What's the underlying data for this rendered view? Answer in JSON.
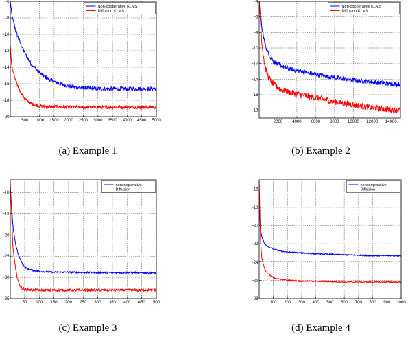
{
  "figure": {
    "captions": [
      "(a) Example 1",
      "(b) Example 2",
      "(c) Example 3",
      "(d) Example 4"
    ]
  },
  "chart_data": [
    {
      "type": "line",
      "xlim": [
        1,
        5000
      ],
      "ylim": [
        -20,
        -6
      ],
      "xticks": [
        500,
        1000,
        1500,
        2000,
        2500,
        3000,
        3500,
        4000,
        4500,
        5000
      ],
      "yticks": [
        -6,
        -8,
        -10,
        -12,
        -14,
        -16,
        -18,
        -20
      ],
      "grid": true,
      "legend_position": "top-right",
      "series": [
        {
          "name": "Non-cooperative KLMS",
          "color": "#0000ff",
          "x": [
            1,
            50,
            100,
            200,
            300,
            400,
            500,
            700,
            1000,
            1300,
            1600,
            2000,
            2500,
            3000,
            3500,
            4000,
            4500,
            5000
          ],
          "y": [
            -6,
            -7.6,
            -8.4,
            -9.7,
            -10.7,
            -11.5,
            -12.3,
            -13.5,
            -14.7,
            -15.4,
            -15.9,
            -16.3,
            -16.5,
            -16.6,
            -16.6,
            -16.6,
            -16.6,
            -16.6
          ],
          "noise": 0.25
        },
        {
          "name": "Diffusion KLMS",
          "color": "#ff0000",
          "x": [
            1,
            50,
            100,
            200,
            300,
            400,
            500,
            700,
            1000,
            1300,
            1600,
            2000,
            3000,
            4000,
            5000
          ],
          "y": [
            -11.5,
            -13.8,
            -14.6,
            -15.8,
            -16.6,
            -17.3,
            -17.8,
            -18.4,
            -18.7,
            -18.8,
            -18.8,
            -18.85,
            -18.85,
            -18.85,
            -18.85
          ],
          "noise": 0.2
        }
      ]
    },
    {
      "type": "line",
      "xlim": [
        1,
        15000
      ],
      "ylim": [
        -19,
        -4
      ],
      "xticks": [
        2000,
        4000,
        6000,
        8000,
        10000,
        12000,
        14000
      ],
      "yticks": [
        -4,
        -6,
        -8,
        -10,
        -12,
        -14,
        -16,
        -18
      ],
      "grid": true,
      "legend_position": "top-right",
      "series": [
        {
          "name": "Non-cooperative KLMS",
          "color": "#0000ff",
          "x": [
            1,
            300,
            600,
            1000,
            1500,
            2000,
            3000,
            4000,
            6000,
            8000,
            10000,
            12000,
            14000,
            15000
          ],
          "y": [
            -4,
            -7.5,
            -9.4,
            -10.8,
            -11.7,
            -12.1,
            -12.6,
            -12.9,
            -13.4,
            -13.8,
            -14.1,
            -14.4,
            -14.6,
            -14.7
          ],
          "noise": 0.3
        },
        {
          "name": "Diffusion KLMS",
          "color": "#ff0000",
          "x": [
            1,
            300,
            600,
            1000,
            1500,
            2000,
            2500,
            3000,
            4000,
            6000,
            8000,
            10000,
            12000,
            14000,
            15000
          ],
          "y": [
            -4,
            -9.5,
            -12.3,
            -13.8,
            -14.6,
            -15.1,
            -15.4,
            -15.6,
            -15.9,
            -16.4,
            -16.9,
            -17.3,
            -17.7,
            -17.9,
            -18.0
          ],
          "noise": 0.4
        }
      ]
    },
    {
      "type": "line",
      "xlim": [
        1,
        500
      ],
      "ylim": [
        -35,
        -7
      ],
      "xticks": [
        50,
        100,
        150,
        200,
        250,
        300,
        350,
        400,
        450,
        500
      ],
      "yticks": [
        -10,
        -15,
        -20,
        -25,
        -30,
        -35
      ],
      "grid": true,
      "legend_position": "top-right",
      "series": [
        {
          "name": "noncooperative",
          "color": "#0000ff",
          "x": [
            1,
            10,
            20,
            30,
            40,
            50,
            60,
            80,
            100,
            150,
            200,
            300,
            400,
            500
          ],
          "y": [
            -9,
            -18,
            -22.5,
            -25,
            -26.5,
            -27.5,
            -28,
            -28.4,
            -28.6,
            -28.8,
            -28.8,
            -28.9,
            -28.9,
            -29
          ],
          "noise": 0.2
        },
        {
          "name": "Diffusion",
          "color": "#ff0000",
          "x": [
            1,
            10,
            20,
            30,
            40,
            50,
            60,
            80,
            100,
            150,
            200,
            300,
            400,
            500
          ],
          "y": [
            -8,
            -23,
            -28.5,
            -31.5,
            -32.5,
            -32.8,
            -32.9,
            -33,
            -33,
            -33,
            -33,
            -33,
            -33,
            -33
          ],
          "noise": 0.3
        }
      ]
    },
    {
      "type": "line",
      "xlim": [
        1,
        1000
      ],
      "ylim": [
        -28,
        -15
      ],
      "xticks": [
        100,
        200,
        300,
        400,
        500,
        600,
        700,
        800,
        900,
        1000
      ],
      "yticks": [
        -16,
        -18,
        -20,
        -22,
        -24,
        -26,
        -28
      ],
      "grid": true,
      "legend_position": "top-right",
      "series": [
        {
          "name": "noncooperative",
          "color": "#0000ff",
          "x": [
            1,
            10,
            20,
            40,
            60,
            100,
            150,
            200,
            300,
            400,
            600,
            800,
            1000
          ],
          "y": [
            -18,
            -20.5,
            -21.3,
            -22.0,
            -22.3,
            -22.6,
            -22.8,
            -22.9,
            -23.0,
            -23.1,
            -23.2,
            -23.3,
            -23.3
          ],
          "noise": 0.06
        },
        {
          "name": "Diffusion",
          "color": "#ff0000",
          "x": [
            1,
            10,
            20,
            40,
            60,
            100,
            150,
            200,
            300,
            400,
            600,
            800,
            1000
          ],
          "y": [
            -15,
            -21.5,
            -23.6,
            -24.8,
            -25.3,
            -25.7,
            -25.9,
            -26.0,
            -26.1,
            -26.1,
            -26.2,
            -26.2,
            -26.2
          ],
          "noise": 0.06
        }
      ]
    }
  ]
}
